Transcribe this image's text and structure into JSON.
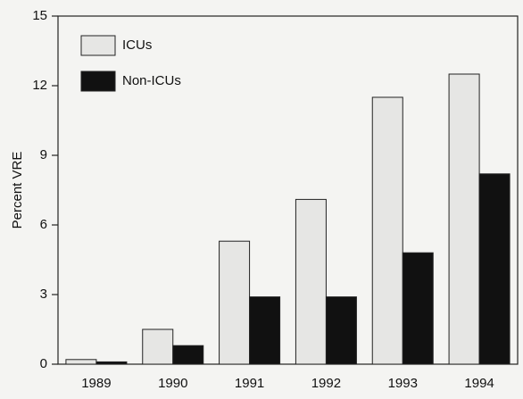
{
  "chart_data": {
    "type": "bar",
    "y_label": "Percent VRE",
    "categories": [
      "1989",
      "1990",
      "1991",
      "1992",
      "1993",
      "1994"
    ],
    "series": [
      {
        "name": "ICUs",
        "color": "#e6e6e4",
        "values": [
          0.2,
          1.5,
          5.3,
          7.1,
          11.5,
          12.5
        ]
      },
      {
        "name": "Non-ICUs",
        "color": "#111111",
        "values": [
          0.1,
          0.8,
          2.9,
          2.9,
          4.8,
          8.2
        ]
      }
    ],
    "ylim": [
      0,
      15
    ],
    "yticks": [
      0,
      3,
      6,
      9,
      12,
      15
    ],
    "grid": false,
    "legend": "upper left"
  }
}
